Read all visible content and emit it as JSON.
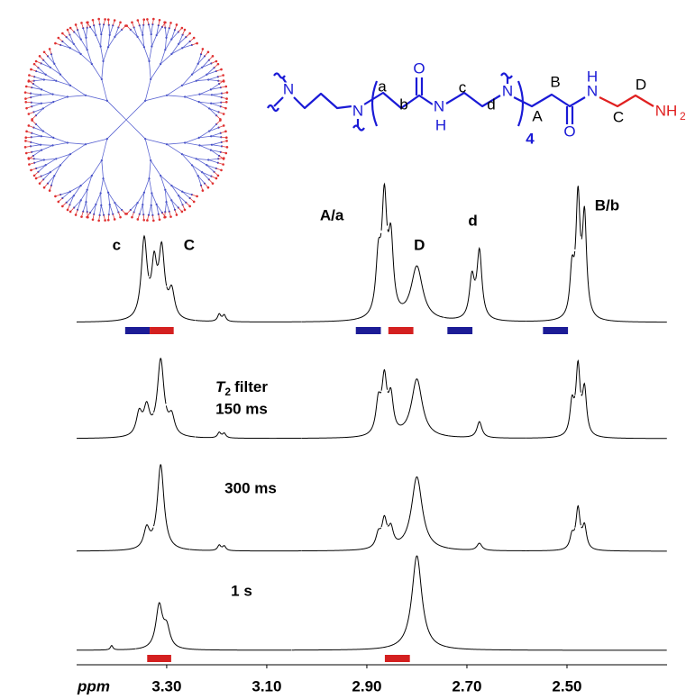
{
  "chart_data": {
    "type": "spectrum",
    "xlabel": "ppm",
    "xlim": [
      3.48,
      2.3
    ],
    "xticks": [
      {
        "value": 3.3,
        "label": "3.30"
      },
      {
        "value": 3.1,
        "label": "3.10"
      },
      {
        "value": 2.9,
        "label": "2.90"
      },
      {
        "value": 2.7,
        "label": "2.70"
      },
      {
        "value": 2.5,
        "label": "2.50"
      }
    ],
    "annotations": [
      "c",
      "C",
      "A/a",
      "D",
      "d",
      "B/b"
    ],
    "traces": [
      {
        "color": "#000000",
        "peaks": [
          {
            "x": 3.345,
            "height": 88,
            "width": 0.007
          },
          {
            "x": 3.325,
            "height": 55,
            "width": 0.006
          },
          {
            "x": 3.31,
            "height": 75,
            "width": 0.007
          },
          {
            "x": 3.29,
            "height": 30,
            "width": 0.007
          },
          {
            "x": 3.195,
            "height": 8,
            "width": 0.004
          },
          {
            "x": 3.185,
            "height": 7,
            "width": 0.004
          },
          {
            "x": 2.877,
            "height": 60,
            "width": 0.006
          },
          {
            "x": 2.865,
            "height": 125,
            "width": 0.006
          },
          {
            "x": 2.852,
            "height": 80,
            "width": 0.006
          },
          {
            "x": 2.8,
            "height": 60,
            "width": 0.014
          },
          {
            "x": 2.69,
            "height": 45,
            "width": 0.006
          },
          {
            "x": 2.675,
            "height": 75,
            "width": 0.006
          },
          {
            "x": 2.49,
            "height": 50,
            "width": 0.005
          },
          {
            "x": 2.478,
            "height": 130,
            "width": 0.005
          },
          {
            "x": 2.465,
            "height": 110,
            "width": 0.005
          }
        ],
        "bars": [
          {
            "from": 3.383,
            "to": 3.334,
            "color": "#1c1c96"
          },
          {
            "from": 3.334,
            "to": 3.286,
            "color": "#d42020"
          },
          {
            "from": 2.922,
            "to": 2.872,
            "color": "#1c1c96"
          },
          {
            "from": 2.857,
            "to": 2.807,
            "color": "#d42020"
          },
          {
            "from": 2.739,
            "to": 2.689,
            "color": "#1c1c96"
          },
          {
            "from": 2.548,
            "to": 2.498,
            "color": "#1c1c96"
          }
        ]
      },
      {
        "color": "#000000",
        "label": {
          "symbol": "T",
          "subscript": "2",
          "text": "filter",
          "time": "150 ms"
        },
        "peaks": [
          {
            "x": 3.355,
            "height": 25,
            "width": 0.007
          },
          {
            "x": 3.34,
            "height": 30,
            "width": 0.007
          },
          {
            "x": 3.312,
            "height": 85,
            "width": 0.008
          },
          {
            "x": 3.29,
            "height": 20,
            "width": 0.007
          },
          {
            "x": 3.195,
            "height": 6,
            "width": 0.004
          },
          {
            "x": 3.185,
            "height": 5,
            "width": 0.004
          },
          {
            "x": 2.877,
            "height": 35,
            "width": 0.006
          },
          {
            "x": 2.865,
            "height": 60,
            "width": 0.006
          },
          {
            "x": 2.852,
            "height": 40,
            "width": 0.006
          },
          {
            "x": 2.8,
            "height": 65,
            "width": 0.013
          },
          {
            "x": 2.675,
            "height": 18,
            "width": 0.006
          },
          {
            "x": 2.49,
            "height": 35,
            "width": 0.005
          },
          {
            "x": 2.478,
            "height": 75,
            "width": 0.005
          },
          {
            "x": 2.465,
            "height": 50,
            "width": 0.005
          }
        ],
        "bars": []
      },
      {
        "color": "#000000",
        "label": {
          "time": "300 ms"
        },
        "peaks": [
          {
            "x": 3.34,
            "height": 22,
            "width": 0.007
          },
          {
            "x": 3.312,
            "height": 95,
            "width": 0.008
          },
          {
            "x": 3.195,
            "height": 6,
            "width": 0.004
          },
          {
            "x": 3.185,
            "height": 5,
            "width": 0.004
          },
          {
            "x": 2.877,
            "height": 15,
            "width": 0.006
          },
          {
            "x": 2.865,
            "height": 30,
            "width": 0.006
          },
          {
            "x": 2.852,
            "height": 20,
            "width": 0.006
          },
          {
            "x": 2.8,
            "height": 82,
            "width": 0.013
          },
          {
            "x": 2.675,
            "height": 8,
            "width": 0.006
          },
          {
            "x": 2.49,
            "height": 15,
            "width": 0.005
          },
          {
            "x": 2.478,
            "height": 45,
            "width": 0.005
          },
          {
            "x": 2.465,
            "height": 25,
            "width": 0.005
          }
        ],
        "bars": []
      },
      {
        "color": "#000000",
        "label": {
          "time": "1 s"
        },
        "peaks": [
          {
            "x": 3.41,
            "height": 5,
            "width": 0.003
          },
          {
            "x": 3.315,
            "height": 48,
            "width": 0.008
          },
          {
            "x": 3.3,
            "height": 22,
            "width": 0.008
          },
          {
            "x": 2.8,
            "height": 105,
            "width": 0.012
          }
        ],
        "bars": [
          {
            "from": 3.339,
            "to": 3.291,
            "color": "#d42020"
          },
          {
            "from": 2.864,
            "to": 2.814,
            "color": "#d42020"
          }
        ]
      }
    ]
  },
  "structure": {
    "labels": [
      "N",
      "N",
      "a",
      "b",
      "O",
      "N",
      "H",
      "c",
      "d",
      "N",
      "A",
      "4",
      "B",
      "O",
      "N",
      "H",
      "C",
      "D",
      "NH",
      "2"
    ]
  }
}
